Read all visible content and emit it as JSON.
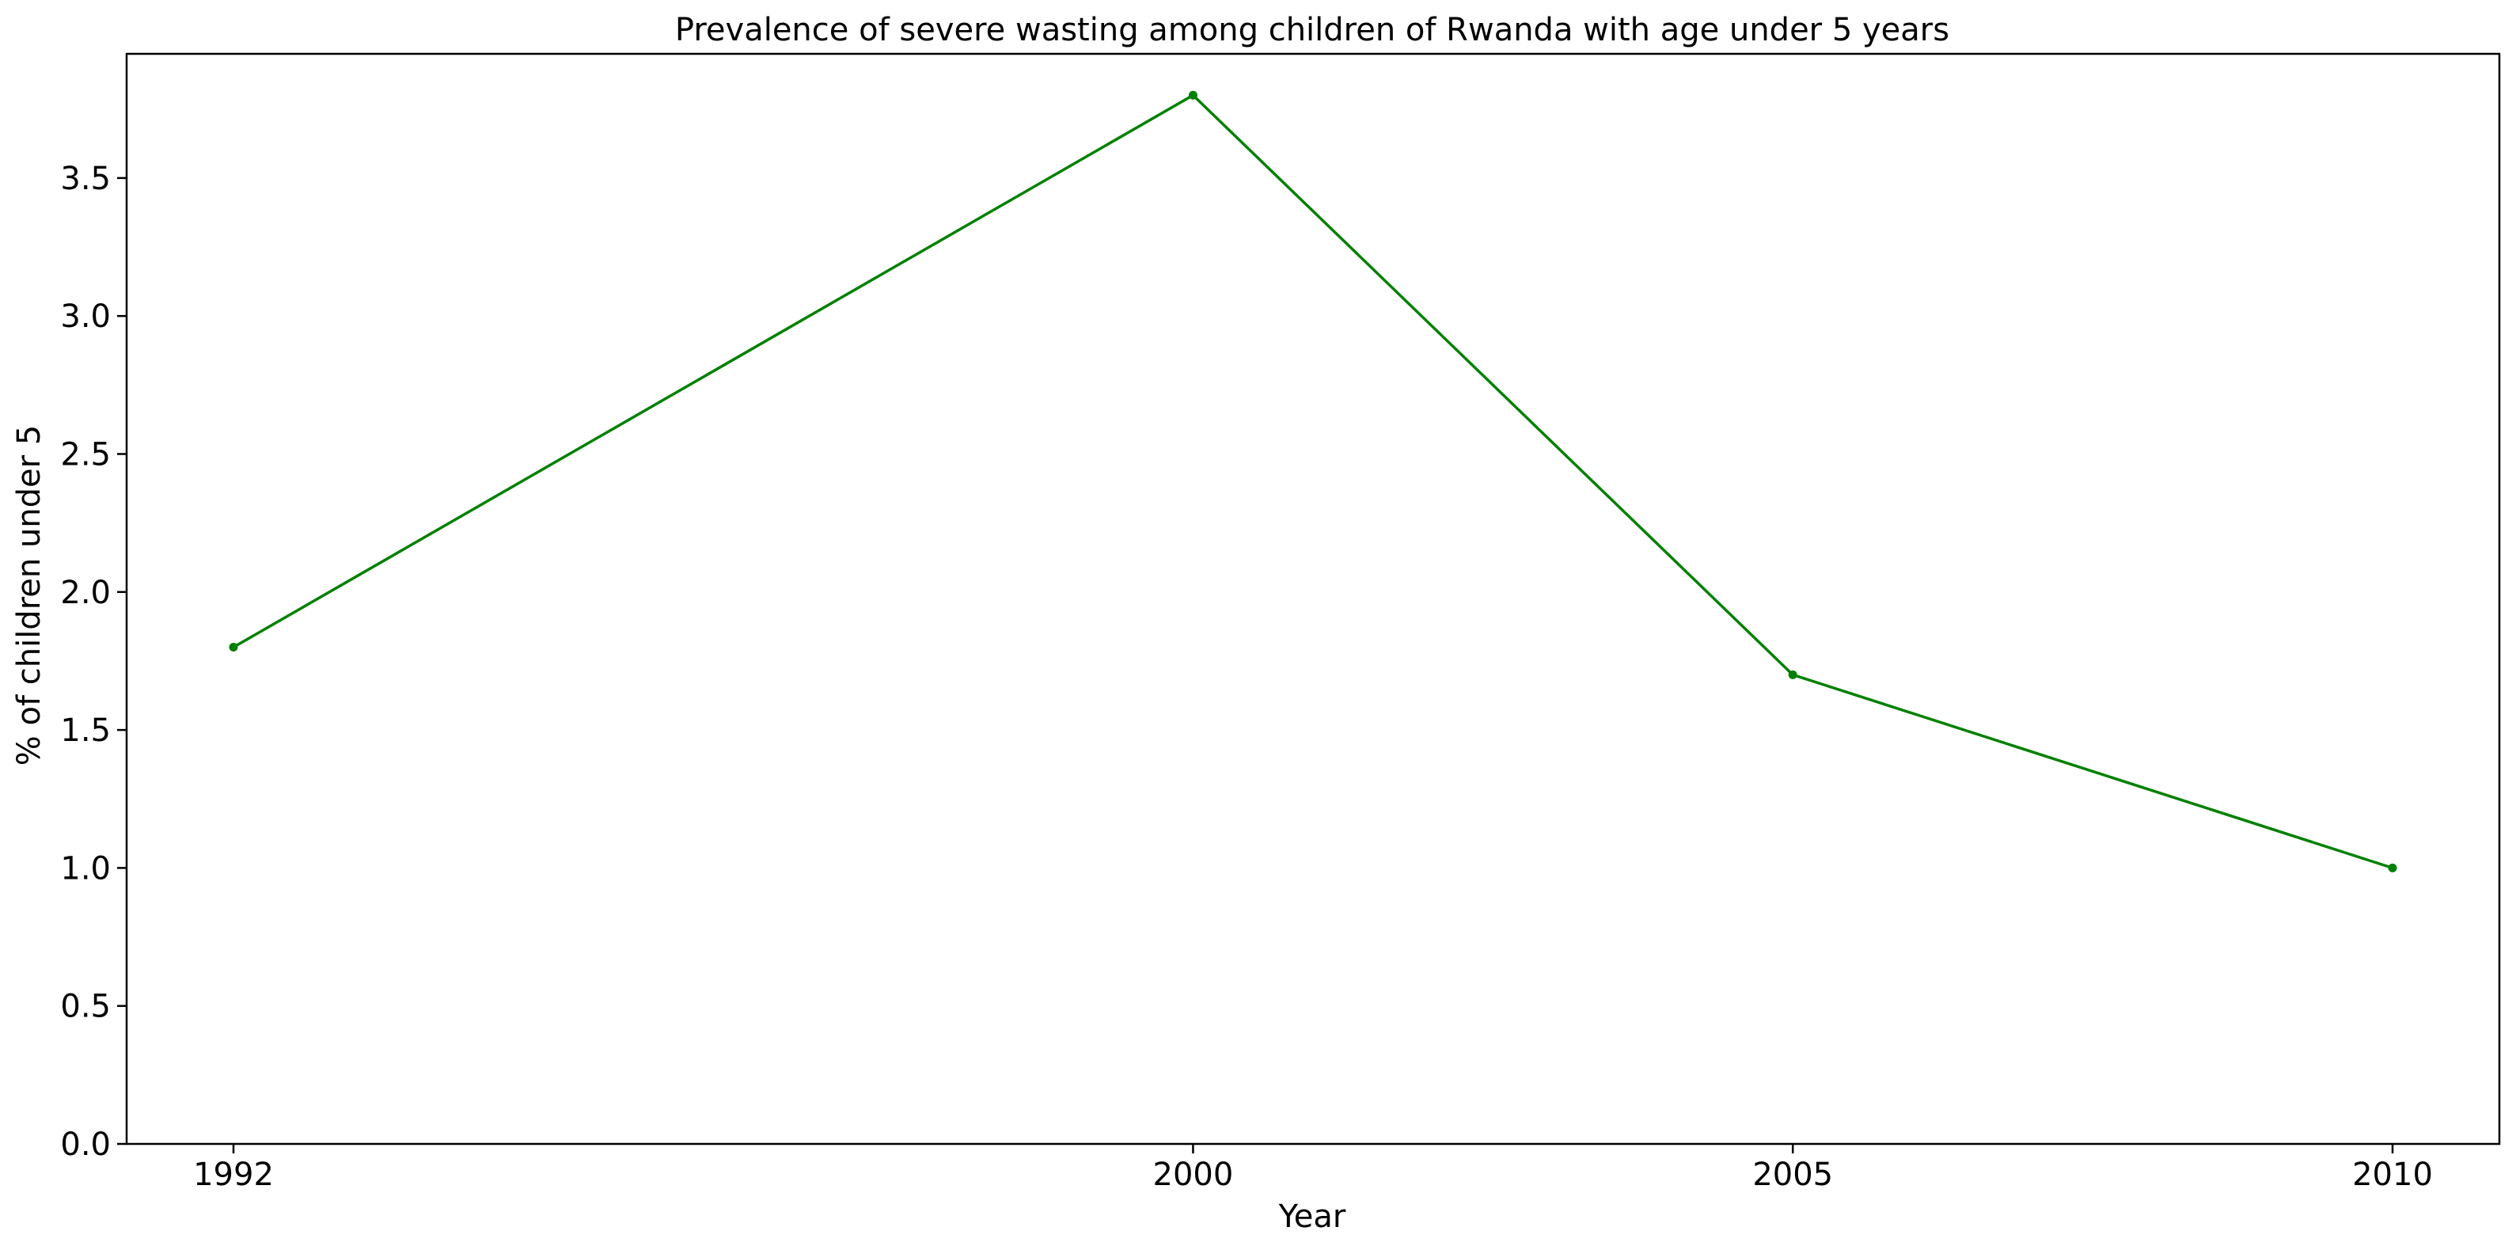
{
  "chart_data": {
    "type": "line",
    "title": "Prevalence of severe wasting among children of Rwanda with age under 5 years",
    "xlabel": "Year",
    "ylabel": "% of children under 5",
    "categories": [
      "1992",
      "2000",
      "2005",
      "2010"
    ],
    "series": [
      {
        "values": [
          1.8,
          3.8,
          1.7,
          1.0
        ],
        "color": "#008000",
        "marker": "circle"
      }
    ],
    "ylim": [
      0,
      3.95
    ],
    "yticks": [
      "0.0",
      "0.5",
      "1.0",
      "1.5",
      "2.0",
      "2.5",
      "3.0",
      "3.5"
    ],
    "grid": false,
    "legend": "none"
  }
}
